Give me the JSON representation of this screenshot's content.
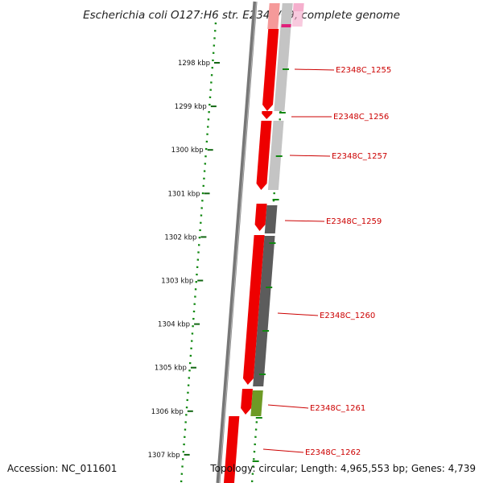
{
  "title": "Escherichia coli O127:H6 str. E2348/69, complete genome",
  "footer": {
    "accession": "Accession: NC_011601",
    "summary": "Topology: circular; Length: 4,965,553 bp; Genes: 4,739"
  },
  "ticks": [
    "1298 kbp",
    "1299 kbp",
    "1300 kbp",
    "1301 kbp",
    "1302 kbp",
    "1303 kbp",
    "1304 kbp",
    "1305 kbp",
    "1306 kbp",
    "1307 kbp"
  ],
  "genes": [
    {
      "label": "E2348C_1255"
    },
    {
      "label": "E2348C_1256"
    },
    {
      "label": "E2348C_1257"
    },
    {
      "label": "E2348C_1259"
    },
    {
      "label": "E2348C_1260"
    },
    {
      "label": "E2348C_1261"
    },
    {
      "label": "E2348C_1262"
    }
  ],
  "colors": {
    "cds": "#ee0000",
    "cds_light": "#f59a9a",
    "blast_light": "#c4c4c4",
    "blast_dark": "#5c5c5c",
    "blast_green": "#6e9a26",
    "blast_pink": "#f4a6c8",
    "backbone": "#777777",
    "gc_dots": "#118811",
    "tick": "#116611",
    "label_line": "#cc0000"
  }
}
